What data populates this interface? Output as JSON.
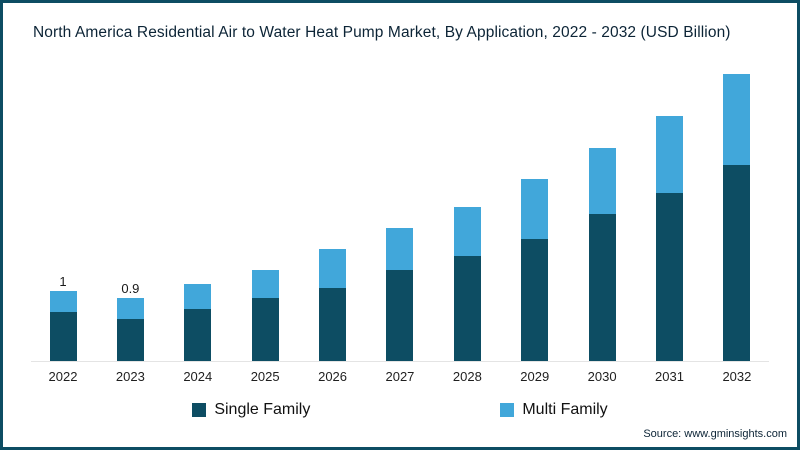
{
  "title": "North America Residential Air to Water Heat Pump Market, By Application, 2022 - 2032 (USD Billion)",
  "source": "Source: www.gminsights.com",
  "colors": {
    "single_family": "#0d4d63",
    "multi_family": "#41a7da",
    "border": "#0d4d63"
  },
  "legend": [
    {
      "label": "Single Family",
      "color": "#0d4d63"
    },
    {
      "label": "Multi Family",
      "color": "#41a7da"
    }
  ],
  "chart_data": {
    "type": "bar",
    "stacked": true,
    "title": "North America Residential Air to Water Heat Pump Market, By Application, 2022 - 2032 (USD Billion)",
    "unit": "USD Billion",
    "categories": [
      "2022",
      "2023",
      "2024",
      "2025",
      "2026",
      "2027",
      "2028",
      "2029",
      "2030",
      "2031",
      "2032"
    ],
    "series": [
      {
        "name": "Single Family",
        "color": "#0d4d63",
        "values": [
          0.7,
          0.6,
          0.75,
          0.9,
          1.05,
          1.3,
          1.5,
          1.75,
          2.1,
          2.4,
          2.8
        ]
      },
      {
        "name": "Multi Family",
        "color": "#41a7da",
        "values": [
          0.3,
          0.3,
          0.35,
          0.4,
          0.55,
          0.6,
          0.7,
          0.85,
          0.95,
          1.1,
          1.3
        ]
      }
    ],
    "totals": [
      1.0,
      0.9,
      1.1,
      1.3,
      1.6,
      1.9,
      2.2,
      2.6,
      3.05,
      3.5,
      4.1
    ],
    "total_labels": [
      "1",
      "0.9",
      "",
      "",
      "",
      "",
      "",
      "",
      "",
      "",
      ""
    ],
    "xlabel": "",
    "ylabel": "",
    "ylim": [
      0,
      4.3
    ],
    "grid": false,
    "legend_position": "bottom"
  }
}
